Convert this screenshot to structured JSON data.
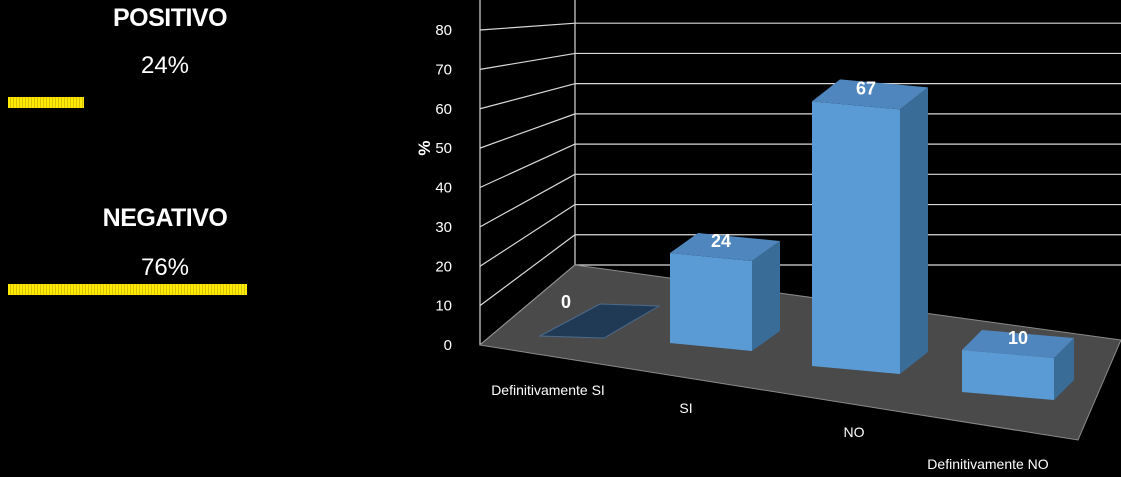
{
  "summary": {
    "positive": {
      "label": "POSITIVO",
      "value": "24%",
      "fraction": 0.24
    },
    "negative": {
      "label": "NEGATIVO",
      "value": "76%",
      "fraction": 0.76
    },
    "bar_color": "#ffea00"
  },
  "chart_data": {
    "type": "bar",
    "ylabel": "%",
    "ylim": [
      0,
      90
    ],
    "yticks": [
      0,
      10,
      20,
      30,
      40,
      50,
      60,
      70,
      80
    ],
    "grid": true,
    "categories": [
      "Definitivamente SI",
      "SI",
      "NO",
      "Definitivamente NO"
    ],
    "values": [
      0,
      24,
      67,
      10
    ],
    "data_labels": [
      "0",
      "24",
      "67",
      "10"
    ],
    "bar_color": "#5b9bd5"
  }
}
